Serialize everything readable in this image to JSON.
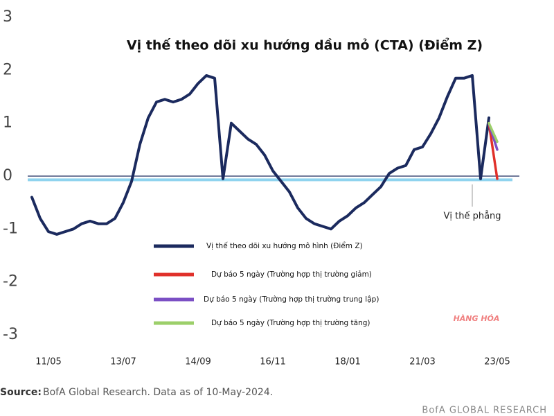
{
  "chart_data": {
    "type": "line",
    "title": "Vị thế theo dõi xu hướng dầu mỏ (CTA) (Điểm Z)",
    "categories": [
      null,
      null,
      "11/05",
      null,
      null,
      null,
      null,
      null,
      null,
      null,
      null,
      "13/07",
      null,
      null,
      null,
      null,
      null,
      null,
      null,
      null,
      "14/09",
      null,
      null,
      null,
      null,
      null,
      null,
      null,
      null,
      "16/11",
      null,
      null,
      null,
      null,
      null,
      null,
      null,
      null,
      "18/01",
      null,
      null,
      null,
      null,
      null,
      null,
      null,
      null,
      "21/03",
      null,
      null,
      null,
      null,
      null,
      null,
      null,
      null,
      "23/05"
    ],
    "series": [
      {
        "name": "Vị thế theo dõi xu hướng mô hình (Điểm Z)",
        "color": "#1b2a5e",
        "values": [
          -0.4,
          -0.8,
          -1.05,
          -1.1,
          -1.05,
          -1.0,
          -0.9,
          -0.85,
          -0.9,
          -0.9,
          -0.8,
          -0.5,
          -0.1,
          0.6,
          1.1,
          1.4,
          1.45,
          1.4,
          1.45,
          1.55,
          1.75,
          1.9,
          1.85,
          -0.05,
          1.0,
          0.85,
          0.7,
          0.6,
          0.4,
          0.1,
          -0.1,
          -0.3,
          -0.6,
          -0.8,
          -0.9,
          -0.95,
          -1.0,
          -0.85,
          -0.75,
          -0.6,
          -0.5,
          -0.35,
          -0.2,
          0.05,
          0.15,
          0.2,
          0.5,
          0.55,
          0.8,
          1.1,
          1.5,
          1.85,
          1.85,
          1.9,
          -0.05,
          1.1,
          null
        ]
      },
      {
        "name": "Dự báo 5 ngày (Trường hợp thị trường giảm)",
        "color": "#e0302a",
        "values": [
          null,
          null,
          null,
          null,
          null,
          null,
          null,
          null,
          null,
          null,
          null,
          null,
          null,
          null,
          null,
          null,
          null,
          null,
          null,
          null,
          null,
          null,
          null,
          null,
          null,
          null,
          null,
          null,
          null,
          null,
          null,
          null,
          null,
          null,
          null,
          null,
          null,
          null,
          null,
          null,
          null,
          null,
          null,
          null,
          null,
          null,
          null,
          null,
          null,
          null,
          null,
          null,
          null,
          null,
          null,
          1.0,
          -0.05
        ]
      },
      {
        "name": "Dự báo 5 ngày (Trường hợp thị trường trung lập)",
        "color": "#7b4fc4",
        "values": [
          null,
          null,
          null,
          null,
          null,
          null,
          null,
          null,
          null,
          null,
          null,
          null,
          null,
          null,
          null,
          null,
          null,
          null,
          null,
          null,
          null,
          null,
          null,
          null,
          null,
          null,
          null,
          null,
          null,
          null,
          null,
          null,
          null,
          null,
          null,
          null,
          null,
          null,
          null,
          null,
          null,
          null,
          null,
          null,
          null,
          null,
          null,
          null,
          null,
          null,
          null,
          null,
          null,
          null,
          null,
          1.0,
          0.5
        ]
      },
      {
        "name": "Dự báo 5 ngày (Trường hợp thị trường tăng)",
        "color": "#9ccf6a",
        "values": [
          null,
          null,
          null,
          null,
          null,
          null,
          null,
          null,
          null,
          null,
          null,
          null,
          null,
          null,
          null,
          null,
          null,
          null,
          null,
          null,
          null,
          null,
          null,
          null,
          null,
          null,
          null,
          null,
          null,
          null,
          null,
          null,
          null,
          null,
          null,
          null,
          null,
          null,
          null,
          null,
          null,
          null,
          null,
          null,
          null,
          null,
          null,
          null,
          null,
          null,
          null,
          null,
          null,
          null,
          null,
          1.0,
          0.65
        ]
      }
    ],
    "reference_line": {
      "label": "Vị thế phẳng",
      "value": -0.07,
      "color": "#8fd3ee"
    },
    "ylim": [
      -3,
      3
    ],
    "yticks": [
      3,
      2,
      1,
      0,
      -1,
      -2,
      -3
    ],
    "grid": false,
    "legend_position": "center",
    "source": {
      "label": "Source:",
      "text": "BofA Global Research. Data as of 10-May-2024."
    },
    "footer": "BofA GLOBAL RESEARCH",
    "watermark": "HÀNG HÓA"
  }
}
